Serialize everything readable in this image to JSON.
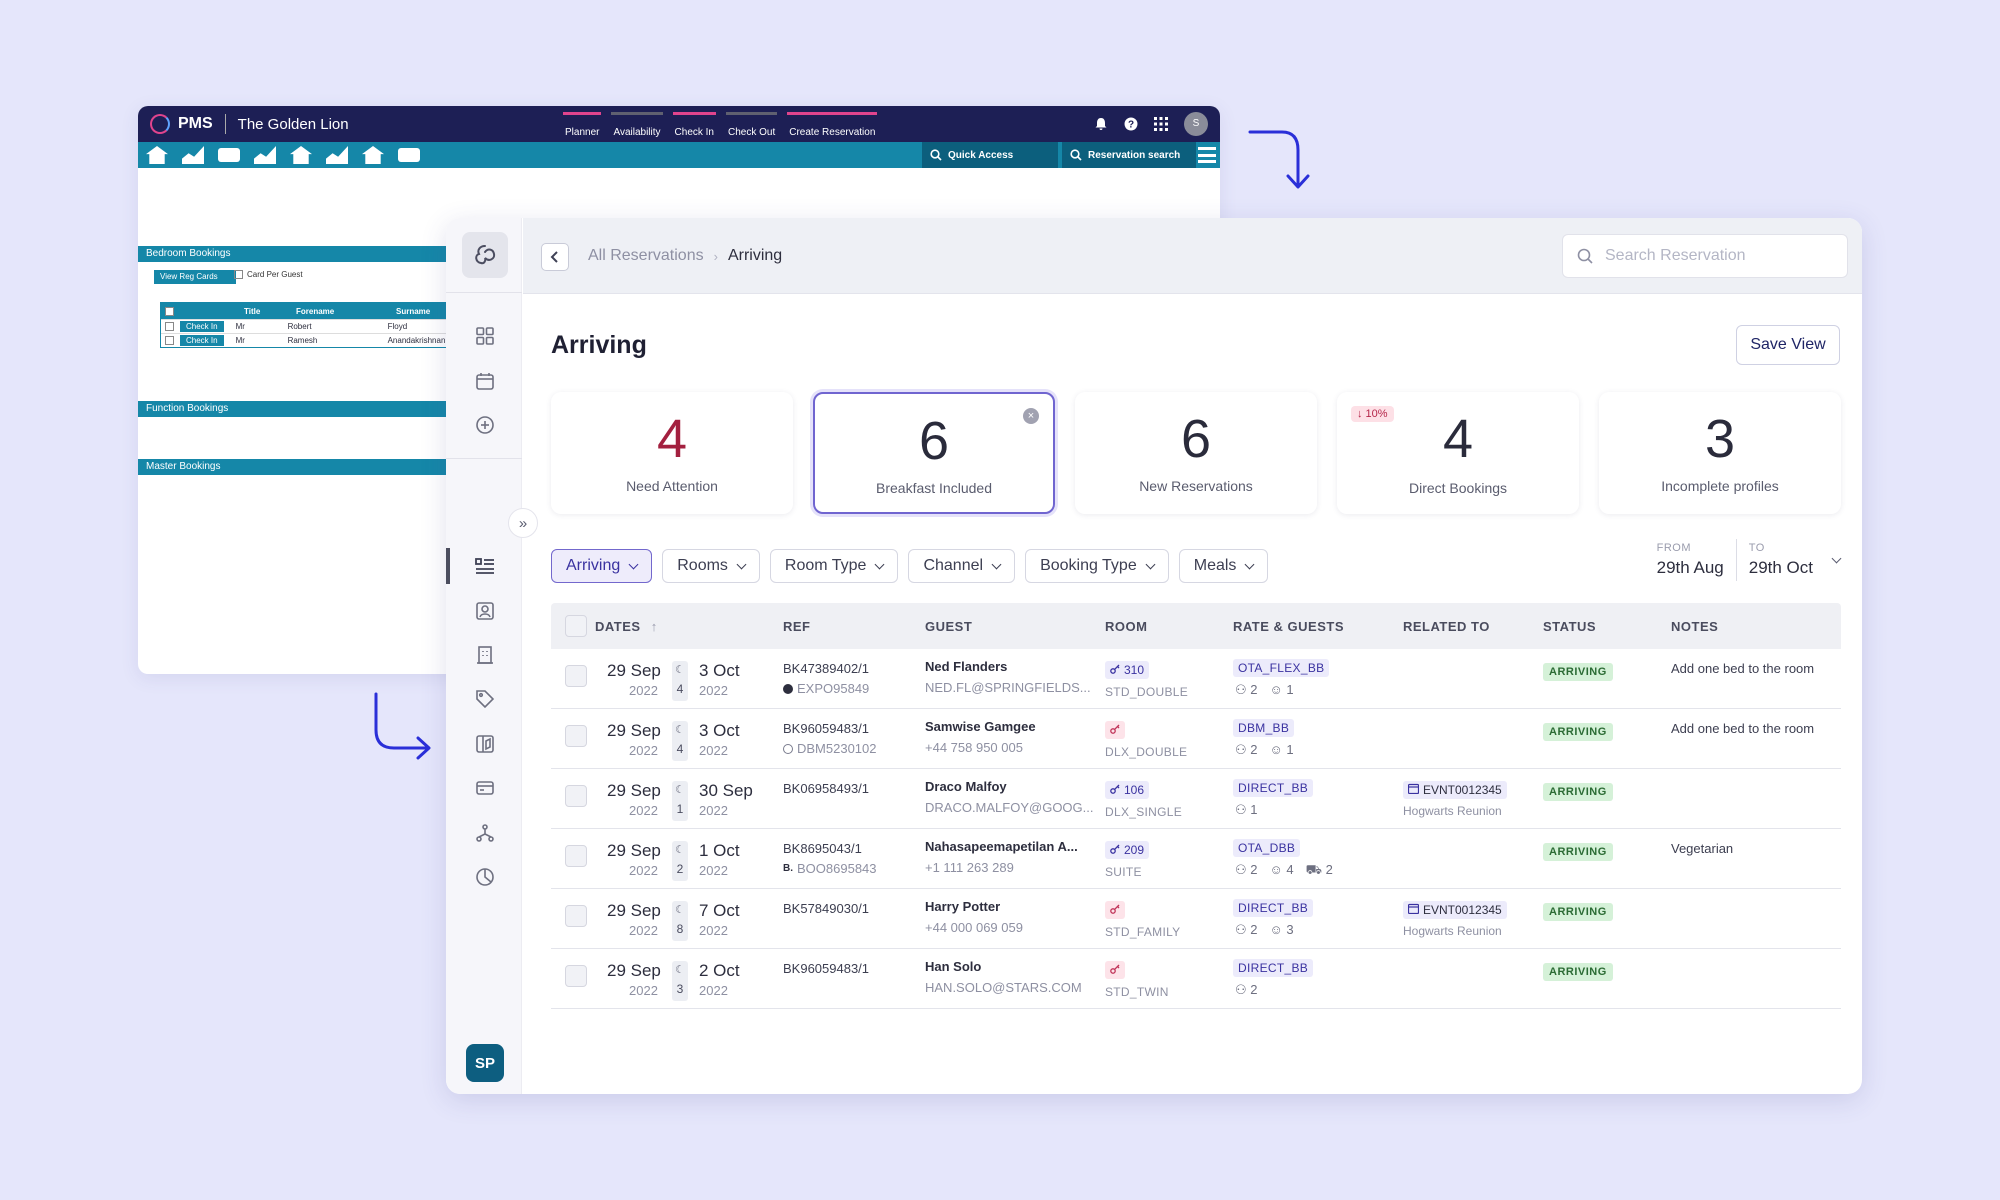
{
  "old_pms": {
    "logo": "PMS",
    "hotel": "The Golden Lion",
    "nav": [
      "Planner",
      "Availability",
      "Check In",
      "Check Out",
      "Create Reservation"
    ],
    "avatar": "S",
    "quick_access": "Quick Access",
    "reservation_search": "Reservation search",
    "sections": [
      "Bedroom Bookings",
      "Function Bookings",
      "Master Bookings"
    ],
    "view_reg_cards": "View Reg Cards",
    "card_per_guest": "Card Per Guest",
    "table_headers": [
      "Title",
      "Forename",
      "Surname"
    ],
    "rows": [
      {
        "action": "Check In",
        "title": "Mr",
        "forename": "Robert",
        "surname": "Floyd"
      },
      {
        "action": "Check In",
        "title": "Mr",
        "forename": "Ramesh",
        "surname": "Anandakrishnan"
      }
    ]
  },
  "breadcrumb": {
    "parent": "All Reservations",
    "current": "Arriving"
  },
  "search": {
    "placeholder": "Search Reservation"
  },
  "page": {
    "title": "Arriving",
    "save_view": "Save View"
  },
  "cards": [
    {
      "value": "4",
      "label": "Need Attention"
    },
    {
      "value": "6",
      "label": "Breakfast Included"
    },
    {
      "value": "6",
      "label": "New Reservations"
    },
    {
      "value": "4",
      "label": "Direct Bookings",
      "badge": "↓ 10%"
    },
    {
      "value": "3",
      "label": "Incomplete profiles"
    }
  ],
  "filters": [
    "Arriving",
    "Rooms",
    "Room Type",
    "Channel",
    "Booking Type",
    "Meals"
  ],
  "range": {
    "from_label": "FROM",
    "from": "29th Aug",
    "to_label": "TO",
    "to": "29th Oct"
  },
  "columns": [
    "DATES",
    "REF",
    "GUEST",
    "ROOM",
    "RATE & GUESTS",
    "RELATED TO",
    "STATUS",
    "NOTES"
  ],
  "rows": [
    {
      "arrive": "29 Sep",
      "arrive_year": "2022",
      "nights": "4",
      "depart": "3 Oct",
      "depart_year": "2022",
      "ref": "BK47389402/1",
      "channel_ref": "EXPO95849",
      "channel_icon": "●",
      "guest": "Ned Flanders",
      "guest_sub": "NED.FL@SPRINGFIELDS...",
      "room": "310",
      "room_type": "STD_DOUBLE",
      "rate": "OTA_FLEX_BB",
      "adults": "2",
      "children": "1",
      "infants": "",
      "related": "",
      "related_name": "",
      "status": "ARRIVING",
      "notes": "Add one bed to the room"
    },
    {
      "arrive": "29 Sep",
      "arrive_year": "2022",
      "nights": "4",
      "depart": "3 Oct",
      "depart_year": "2022",
      "ref": "BK96059483/1",
      "channel_ref": "DBM5230102",
      "channel_icon": "◎",
      "guest": "Samwise Gamgee",
      "guest_sub": "+44 758 950 005",
      "room": "",
      "room_type": "DLX_DOUBLE",
      "rate": "DBM_BB",
      "adults": "2",
      "children": "1",
      "infants": "",
      "related": "",
      "related_name": "",
      "status": "ARRIVING",
      "notes": "Add one bed to the room"
    },
    {
      "arrive": "29 Sep",
      "arrive_year": "2022",
      "nights": "1",
      "depart": "30 Sep",
      "depart_year": "2022",
      "ref": "BK06958493/1",
      "channel_ref": "",
      "channel_icon": "",
      "guest": "Draco Malfoy",
      "guest_sub": "DRACO.MALFOY@GOOG...",
      "room": "106",
      "room_type": "DLX_SINGLE",
      "rate": "DIRECT_BB",
      "adults": "1",
      "children": "",
      "infants": "",
      "related": "EVNT0012345",
      "related_name": "Hogwarts Reunion",
      "status": "ARRIVING",
      "notes": ""
    },
    {
      "arrive": "29 Sep",
      "arrive_year": "2022",
      "nights": "2",
      "depart": "1 Oct",
      "depart_year": "2022",
      "ref": "BK8695043/1",
      "channel_ref": "BOO8695843",
      "channel_icon": "B.",
      "guest": "Nahasapeemapetilan A...",
      "guest_sub": "+1 111 263 289",
      "room": "209",
      "room_type": "SUITE",
      "rate": "OTA_DBB",
      "adults": "2",
      "children": "4",
      "infants": "2",
      "related": "",
      "related_name": "",
      "status": "ARRIVING",
      "notes": "Vegetarian"
    },
    {
      "arrive": "29 Sep",
      "arrive_year": "2022",
      "nights": "8",
      "depart": "7 Oct",
      "depart_year": "2022",
      "ref": "BK57849030/1",
      "channel_ref": "",
      "channel_icon": "",
      "guest": "Harry Potter",
      "guest_sub": "+44 000 069 059",
      "room": "",
      "room_type": "STD_FAMILY",
      "rate": "DIRECT_BB",
      "adults": "2",
      "children": "3",
      "infants": "",
      "related": "EVNT0012345",
      "related_name": "Hogwarts Reunion",
      "status": "ARRIVING",
      "notes": ""
    },
    {
      "arrive": "29 Sep",
      "arrive_year": "2022",
      "nights": "3",
      "depart": "2 Oct",
      "depart_year": "2022",
      "ref": "BK96059483/1",
      "channel_ref": "",
      "channel_icon": "",
      "guest": "Han Solo",
      "guest_sub": "HAN.SOLO@STARS.COM",
      "room": "",
      "room_type": "STD_TWIN",
      "rate": "DIRECT_BB",
      "adults": "2",
      "children": "",
      "infants": "",
      "related": "",
      "related_name": "",
      "status": "ARRIVING",
      "notes": ""
    }
  ],
  "user": {
    "initials": "SP"
  },
  "colors": {
    "accent": "#7065d0",
    "status_green": "#d5f1d8",
    "rail_avatar": "#0d5e80",
    "old_header": "#1d1f55",
    "old_teal": "#1587a8",
    "alert_red": "#a3203f"
  }
}
